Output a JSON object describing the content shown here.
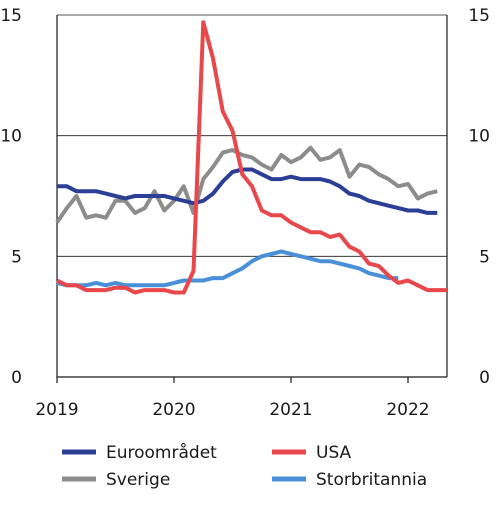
{
  "chart_data": {
    "type": "line",
    "title": "",
    "xlabel": "",
    "ylabel": "",
    "ylim": [
      0,
      15
    ],
    "xlim": [
      "2019-01",
      "2022-05"
    ],
    "yticks": [
      0,
      5,
      10,
      15
    ],
    "xticks": [
      {
        "label": "2019",
        "month": "2019-01"
      },
      {
        "label": "2020",
        "month": "2020-01"
      },
      {
        "label": "2021",
        "month": "2021-01"
      },
      {
        "label": "2022",
        "month": "2022-01"
      }
    ],
    "grid": {
      "horizontal": true,
      "vertical": false
    },
    "axes": {
      "left": true,
      "right": true
    },
    "legend_position": "bottom",
    "series": [
      {
        "name": "Euroområdet",
        "color": "#2a3f95",
        "x": [
          "2019-01",
          "2019-02",
          "2019-03",
          "2019-04",
          "2019-05",
          "2019-06",
          "2019-07",
          "2019-08",
          "2019-09",
          "2019-10",
          "2019-11",
          "2019-12",
          "2020-01",
          "2020-02",
          "2020-03",
          "2020-04",
          "2020-05",
          "2020-06",
          "2020-07",
          "2020-08",
          "2020-09",
          "2020-10",
          "2020-11",
          "2020-12",
          "2021-01",
          "2021-02",
          "2021-03",
          "2021-04",
          "2021-05",
          "2021-06",
          "2021-07",
          "2021-08",
          "2021-09",
          "2021-10",
          "2021-11",
          "2021-12",
          "2022-01",
          "2022-02",
          "2022-03",
          "2022-04"
        ],
        "values": [
          7.9,
          7.9,
          7.7,
          7.7,
          7.7,
          7.6,
          7.5,
          7.4,
          7.5,
          7.5,
          7.5,
          7.5,
          7.4,
          7.3,
          7.2,
          7.3,
          7.6,
          8.1,
          8.5,
          8.6,
          8.6,
          8.4,
          8.2,
          8.2,
          8.3,
          8.2,
          8.2,
          8.2,
          8.1,
          7.9,
          7.6,
          7.5,
          7.3,
          7.2,
          7.1,
          7.0,
          6.9,
          6.9,
          6.8,
          6.8
        ]
      },
      {
        "name": "USA",
        "color": "#e8474c",
        "x": [
          "2019-01",
          "2019-02",
          "2019-03",
          "2019-04",
          "2019-05",
          "2019-06",
          "2019-07",
          "2019-08",
          "2019-09",
          "2019-10",
          "2019-11",
          "2019-12",
          "2020-01",
          "2020-02",
          "2020-03",
          "2020-04",
          "2020-05",
          "2020-06",
          "2020-07",
          "2020-08",
          "2020-09",
          "2020-10",
          "2020-11",
          "2020-12",
          "2021-01",
          "2021-02",
          "2021-03",
          "2021-04",
          "2021-05",
          "2021-06",
          "2021-07",
          "2021-08",
          "2021-09",
          "2021-10",
          "2021-11",
          "2021-12",
          "2022-01",
          "2022-02",
          "2022-03",
          "2022-04",
          "2022-05"
        ],
        "values": [
          4.0,
          3.8,
          3.8,
          3.6,
          3.6,
          3.6,
          3.7,
          3.7,
          3.5,
          3.6,
          3.6,
          3.6,
          3.5,
          3.5,
          4.4,
          14.7,
          13.2,
          11.0,
          10.2,
          8.4,
          7.9,
          6.9,
          6.7,
          6.7,
          6.4,
          6.2,
          6.0,
          6.0,
          5.8,
          5.9,
          5.4,
          5.2,
          4.7,
          4.6,
          4.2,
          3.9,
          4.0,
          3.8,
          3.6,
          3.6,
          3.6
        ]
      },
      {
        "name": "Sverige",
        "color": "#8c8c8c",
        "x": [
          "2019-01",
          "2019-02",
          "2019-03",
          "2019-04",
          "2019-05",
          "2019-06",
          "2019-07",
          "2019-08",
          "2019-09",
          "2019-10",
          "2019-11",
          "2019-12",
          "2020-01",
          "2020-02",
          "2020-03",
          "2020-04",
          "2020-05",
          "2020-06",
          "2020-07",
          "2020-08",
          "2020-09",
          "2020-10",
          "2020-11",
          "2020-12",
          "2021-01",
          "2021-02",
          "2021-03",
          "2021-04",
          "2021-05",
          "2021-06",
          "2021-07",
          "2021-08",
          "2021-09",
          "2021-10",
          "2021-11",
          "2021-12",
          "2022-01",
          "2022-02",
          "2022-03",
          "2022-04"
        ],
        "values": [
          6.4,
          7.0,
          7.5,
          6.6,
          6.7,
          6.6,
          7.3,
          7.3,
          6.8,
          7.0,
          7.7,
          6.9,
          7.3,
          7.9,
          6.8,
          8.2,
          8.7,
          9.3,
          9.4,
          9.2,
          9.1,
          8.8,
          8.6,
          9.2,
          8.9,
          9.1,
          9.5,
          9.0,
          9.1,
          9.4,
          8.3,
          8.8,
          8.7,
          8.4,
          8.2,
          7.9,
          8.0,
          7.4,
          7.6,
          7.7
        ]
      },
      {
        "name": "Storbritannia",
        "color": "#4a90d9",
        "x": [
          "2019-01",
          "2019-02",
          "2019-03",
          "2019-04",
          "2019-05",
          "2019-06",
          "2019-07",
          "2019-08",
          "2019-09",
          "2019-10",
          "2019-11",
          "2019-12",
          "2020-01",
          "2020-02",
          "2020-03",
          "2020-04",
          "2020-05",
          "2020-06",
          "2020-07",
          "2020-08",
          "2020-09",
          "2020-10",
          "2020-11",
          "2020-12",
          "2021-01",
          "2021-02",
          "2021-03",
          "2021-04",
          "2021-05",
          "2021-06",
          "2021-07",
          "2021-08",
          "2021-09",
          "2021-10",
          "2021-11",
          "2021-12"
        ],
        "values": [
          3.9,
          3.8,
          3.8,
          3.8,
          3.9,
          3.8,
          3.9,
          3.8,
          3.8,
          3.8,
          3.8,
          3.8,
          3.9,
          4.0,
          4.0,
          4.0,
          4.1,
          4.1,
          4.3,
          4.5,
          4.8,
          5.0,
          5.1,
          5.2,
          5.1,
          5.0,
          4.9,
          4.8,
          4.8,
          4.7,
          4.6,
          4.5,
          4.3,
          4.2,
          4.1,
          4.1
        ]
      }
    ],
    "legend": [
      {
        "name": "Euroområdet",
        "color": "#2a3f95"
      },
      {
        "name": "USA",
        "color": "#e8474c"
      },
      {
        "name": "Sverige",
        "color": "#8c8c8c"
      },
      {
        "name": "Storbritannia",
        "color": "#4a90d9"
      }
    ]
  }
}
